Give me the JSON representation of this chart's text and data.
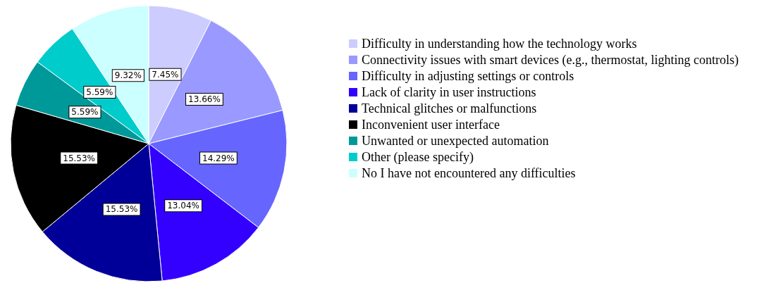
{
  "chart_data": {
    "type": "pie",
    "categories": [
      "Difficulty in understanding how the technology works",
      "Connectivity issues with smart devices (e.g., thermostat, lighting controls)",
      "Difficulty in adjusting settings or controls",
      "Lack of clarity in user instructions",
      "Technical glitches or malfunctions",
      "Inconvenient user interface",
      "Unwanted or unexpected automation",
      "Other (please specify)",
      "No I have not encountered any difficulties"
    ],
    "values": [
      7.45,
      13.66,
      14.29,
      13.04,
      15.53,
      15.53,
      5.59,
      5.59,
      9.32
    ],
    "colors": [
      "#ccccff",
      "#9999ff",
      "#6666ff",
      "#3300ff",
      "#000099",
      "#000000",
      "#009999",
      "#00cccc",
      "#ccffff"
    ],
    "value_labels": [
      "7.45%",
      "13.66%",
      "14.29%",
      "13.04%",
      "15.53%",
      "15.53%",
      "5.59%",
      "5.59%",
      "9.32%"
    ],
    "legend": "right"
  }
}
